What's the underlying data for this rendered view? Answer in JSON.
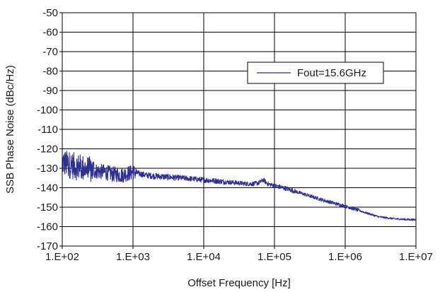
{
  "chart_data": {
    "type": "line",
    "title": "",
    "xlabel": "Offset Frequency [Hz]",
    "ylabel": "SSB Phase Noise (dBc/Hz)",
    "x_scale": "log",
    "xlim": [
      100,
      10000000
    ],
    "ylim": [
      -170,
      -50
    ],
    "x_tick_labels": [
      "1.E+02",
      "1.E+03",
      "1.E+04",
      "1.E+05",
      "1.E+06",
      "1.E+07"
    ],
    "y_tick_labels": [
      "-50",
      "-60",
      "-70",
      "-80",
      "-90",
      "-100",
      "-110",
      "-120",
      "-130",
      "-140",
      "-150",
      "-160",
      "-170"
    ],
    "grid": true,
    "legend_position": "top-right",
    "series": [
      {
        "name": "Fout=15.6GHz",
        "color": "#2e3192",
        "x": [
          100,
          120,
          150,
          200,
          250,
          300,
          400,
          500,
          700,
          1000,
          1500,
          2000,
          3000,
          5000,
          7000,
          10000,
          15000,
          20000,
          30000,
          40000,
          50000,
          60000,
          70000,
          80000,
          100000,
          150000,
          200000,
          300000,
          500000,
          700000,
          1000000,
          1500000,
          2000000,
          3000000,
          5000000,
          7000000,
          10000000
        ],
        "y": [
          -127,
          -128,
          -129,
          -130,
          -131,
          -131.5,
          -132,
          -133,
          -133.5,
          -132,
          -133.5,
          -134,
          -134.5,
          -135,
          -135.5,
          -136,
          -136.5,
          -137,
          -137.5,
          -138,
          -138,
          -137.5,
          -136,
          -138,
          -139,
          -140.5,
          -142,
          -144,
          -146.5,
          -148,
          -149.5,
          -151.5,
          -153,
          -155,
          -156,
          -156.3,
          -156.5
        ]
      }
    ]
  }
}
